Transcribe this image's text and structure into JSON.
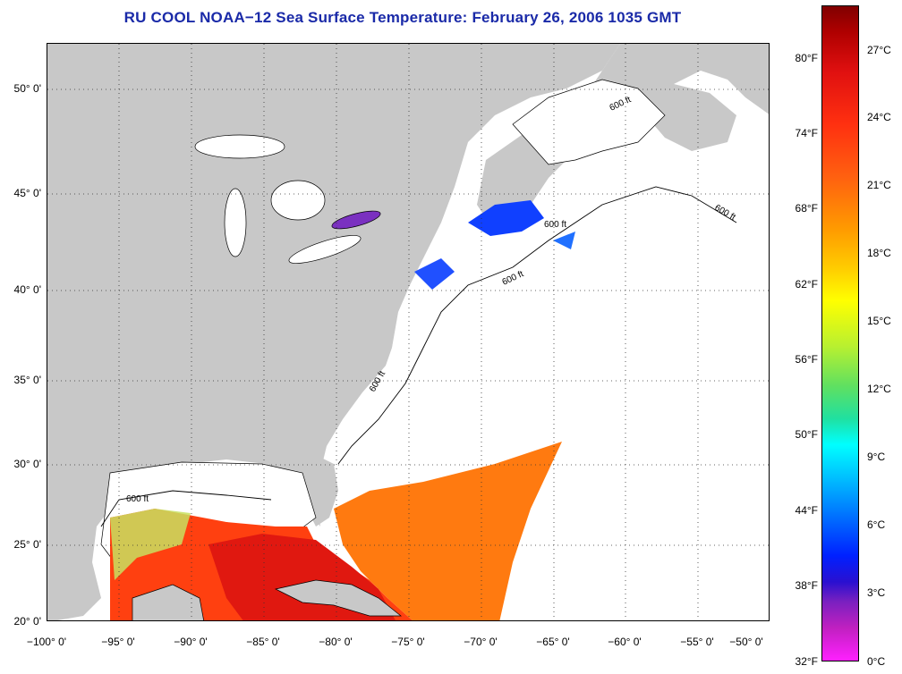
{
  "title": "RU COOL  NOAA−12  Sea Surface Temperature:  February 26, 2006 1035 GMT",
  "map": {
    "lat_labels": [
      "50° 0'",
      "45° 0'",
      "40° 0'",
      "35° 0'",
      "30° 0'",
      "25° 0'",
      "20° 0'"
    ],
    "lon_labels": [
      "−100° 0'",
      "−95° 0'",
      "−90° 0'",
      "−85° 0'",
      "−80° 0'",
      "−75° 0'",
      "−70° 0'",
      "−65° 0'",
      "−60° 0'",
      "−55° 0'",
      "−50° 0'"
    ],
    "contour_labels": [
      "600 ft",
      "600 ft",
      "600 ft",
      "600 ft",
      "600 ft",
      "600 ft"
    ],
    "colors": {
      "land": "#c8c8c8",
      "ocean_no_data": "#ffffff",
      "grid": "#333333",
      "title": "#1a2aa8"
    }
  },
  "colorbar": {
    "fahrenheit": [
      "80°F",
      "74°F",
      "68°F",
      "62°F",
      "56°F",
      "50°F",
      "44°F",
      "38°F",
      "32°F"
    ],
    "celsius": [
      "27°C",
      "24°C",
      "21°C",
      "18°C",
      "15°C",
      "12°C",
      "9°C",
      "6°C",
      "3°C",
      "0°C"
    ]
  }
}
